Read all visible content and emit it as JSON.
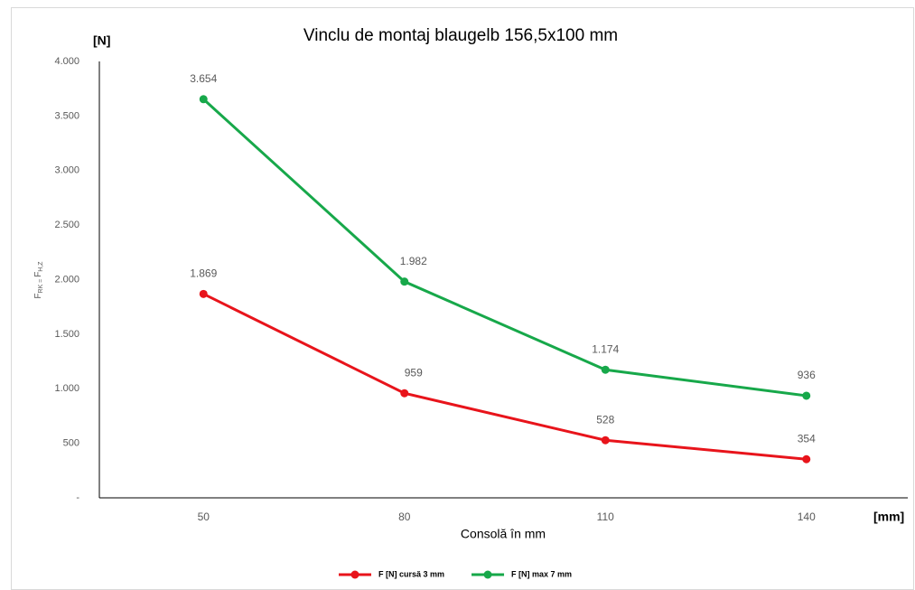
{
  "chart_data": {
    "type": "line",
    "title": "Vinclu de montaj blaugelb 156,5x100 mm",
    "y_unit": "[N]",
    "x_unit": "[mm]",
    "xlabel": "Consolă în mm",
    "ylabel": {
      "parts": [
        "F",
        "RK = ",
        "F",
        "H,Z"
      ]
    },
    "categories": [
      "50",
      "80",
      "110",
      "140"
    ],
    "series": [
      {
        "name": "F [N] cursă 3 mm",
        "color": "#e8141b",
        "values": [
          1869,
          959,
          528,
          354
        ],
        "value_labels": [
          "1.869",
          "959",
          "528",
          "354"
        ]
      },
      {
        "name": "F [N] max 7 mm",
        "color": "#17a84a",
        "values": [
          3654,
          1982,
          1174,
          936
        ],
        "value_labels": [
          "3.654",
          "1.982",
          "1.174",
          "936"
        ]
      }
    ],
    "ylim": [
      0,
      4000
    ],
    "yticks": [
      {
        "value": 0,
        "label": "-"
      },
      500,
      {
        "value": 1000,
        "label": "1.000"
      },
      {
        "value": 1500,
        "label": "1.500"
      },
      {
        "value": 2000,
        "label": "2.000"
      },
      {
        "value": 2500,
        "label": "2.500"
      },
      {
        "value": 3000,
        "label": "3.000"
      },
      {
        "value": 3500,
        "label": "3.500"
      },
      {
        "value": 4000,
        "label": "4.000"
      }
    ],
    "grid": false,
    "legend": "bottom"
  }
}
